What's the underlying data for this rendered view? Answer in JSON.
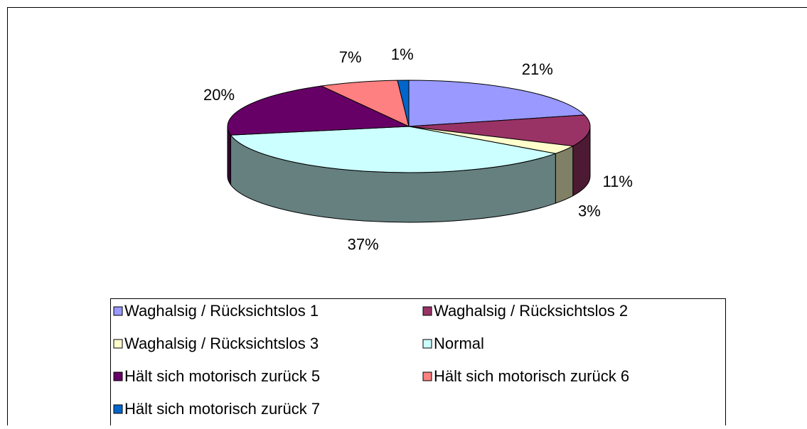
{
  "chart_data": {
    "type": "pie",
    "categories": [
      "Waghalsig / Rücksichtslos 1",
      "Waghalsig / Rücksichtslos 2",
      "Waghalsig / Rücksichtslos 3",
      "Normal",
      "Hält sich motorisch zurück 5",
      "Hält sich motorisch zurück 6",
      "Hält sich motorisch zurück 7"
    ],
    "values": [
      21,
      11,
      3,
      37,
      20,
      7,
      1
    ],
    "value_labels": [
      "21%",
      "11%",
      "3%",
      "37%",
      "20%",
      "7%",
      "1%"
    ],
    "colors": [
      "#9999ff",
      "#993366",
      "#ffffcc",
      "#ccffff",
      "#660066",
      "#ff8080",
      "#0066cc"
    ],
    "legend": "bottom"
  }
}
